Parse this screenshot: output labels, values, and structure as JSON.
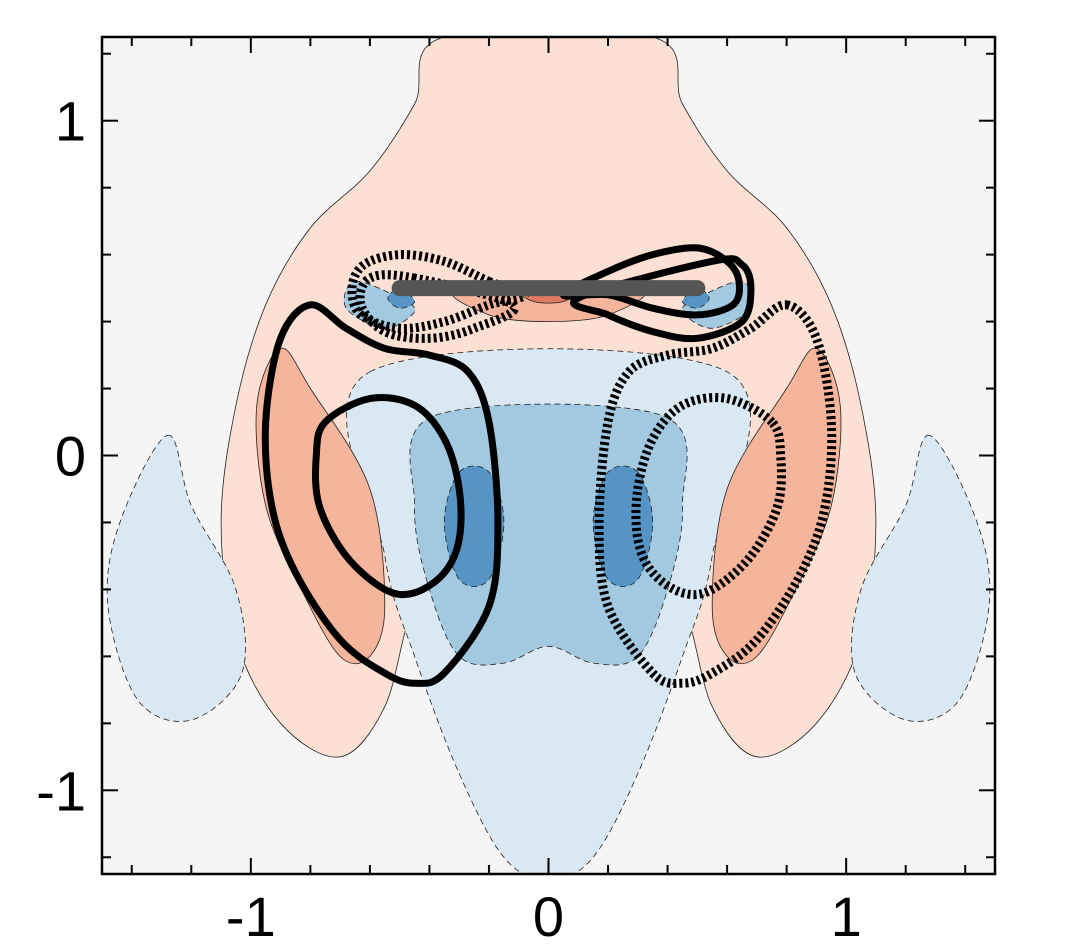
{
  "chart_data": {
    "type": "contour",
    "title": "",
    "xlabel": "",
    "ylabel": "",
    "xlim": [
      -1.5,
      1.5
    ],
    "ylim": [
      -1.25,
      1.25
    ],
    "x_ticks": [
      -1,
      0,
      1
    ],
    "x_tick_labels": [
      "-1",
      "0",
      "1"
    ],
    "y_ticks": [
      -1,
      0,
      1
    ],
    "y_tick_labels": [
      "-1",
      "0",
      "1"
    ],
    "grid": false,
    "legend": "none",
    "colors": {
      "background": "#f5f5f5",
      "positive_light": "#fbe0d3",
      "positive_mid": "#f4b59c",
      "positive_strong": "#e07a62",
      "negative_light": "#d9e8f2",
      "negative_mid": "#a3c9e0",
      "negative_strong": "#5594c4",
      "plate": "#555555",
      "isoline": "#000000"
    },
    "plate": {
      "x": [
        -0.5,
        0.5
      ],
      "y": 0.5
    },
    "filled_regions": [
      {
        "sign": "positive",
        "level": 1,
        "points": [
          [
            -0.35,
            1.25
          ],
          [
            0.35,
            1.25
          ],
          [
            0.45,
            1.05
          ],
          [
            0.6,
            0.85
          ],
          [
            0.8,
            0.68
          ],
          [
            0.95,
            0.45
          ],
          [
            1.05,
            0.15
          ],
          [
            1.1,
            -0.2
          ],
          [
            1.05,
            -0.55
          ],
          [
            0.9,
            -0.8
          ],
          [
            0.7,
            -0.9
          ],
          [
            0.55,
            -0.75
          ],
          [
            0.45,
            -0.45
          ],
          [
            0.3,
            -0.4
          ],
          [
            0.0,
            -0.35
          ],
          [
            -0.3,
            -0.4
          ],
          [
            -0.45,
            -0.45
          ],
          [
            -0.55,
            -0.75
          ],
          [
            -0.7,
            -0.9
          ],
          [
            -0.9,
            -0.8
          ],
          [
            -1.05,
            -0.55
          ],
          [
            -1.1,
            -0.2
          ],
          [
            -1.05,
            0.15
          ],
          [
            -0.95,
            0.45
          ],
          [
            -0.8,
            0.68
          ],
          [
            -0.6,
            0.85
          ],
          [
            -0.45,
            1.05
          ]
        ]
      },
      {
        "sign": "negative",
        "level": 1,
        "points": [
          [
            -0.6,
            0.25
          ],
          [
            0.6,
            0.25
          ],
          [
            0.55,
            -0.3
          ],
          [
            0.45,
            -0.6
          ],
          [
            0.3,
            -0.95
          ],
          [
            0.15,
            -1.2
          ],
          [
            0.0,
            -1.27
          ],
          [
            -0.15,
            -1.2
          ],
          [
            -0.3,
            -0.95
          ],
          [
            -0.45,
            -0.6
          ],
          [
            -0.55,
            -0.3
          ]
        ]
      },
      {
        "sign": "negative",
        "level": 1,
        "points": [
          [
            -1.28,
            0.06
          ],
          [
            -1.2,
            -0.15
          ],
          [
            -1.05,
            -0.4
          ],
          [
            -1.03,
            -0.65
          ],
          [
            -1.2,
            -0.79
          ],
          [
            -1.38,
            -0.73
          ],
          [
            -1.48,
            -0.45
          ],
          [
            -1.44,
            -0.2
          ]
        ]
      },
      {
        "sign": "negative",
        "level": 1,
        "points": [
          [
            1.28,
            0.06
          ],
          [
            1.2,
            -0.15
          ],
          [
            1.05,
            -0.4
          ],
          [
            1.03,
            -0.65
          ],
          [
            1.2,
            -0.79
          ],
          [
            1.38,
            -0.73
          ],
          [
            1.48,
            -0.45
          ],
          [
            1.44,
            -0.2
          ]
        ]
      },
      {
        "sign": "negative",
        "level": 2,
        "points": [
          [
            -0.38,
            0.12
          ],
          [
            0.38,
            0.12
          ],
          [
            0.45,
            -0.15
          ],
          [
            0.4,
            -0.4
          ],
          [
            0.3,
            -0.6
          ],
          [
            0.15,
            -0.62
          ],
          [
            0.0,
            -0.57
          ],
          [
            -0.15,
            -0.62
          ],
          [
            -0.3,
            -0.6
          ],
          [
            -0.4,
            -0.4
          ],
          [
            -0.45,
            -0.15
          ]
        ]
      },
      {
        "sign": "negative",
        "level": 3,
        "points": [
          [
            -0.3,
            -0.05
          ],
          [
            -0.2,
            -0.05
          ],
          [
            -0.15,
            -0.2
          ],
          [
            -0.2,
            -0.37
          ],
          [
            -0.3,
            -0.37
          ],
          [
            -0.35,
            -0.2
          ]
        ]
      },
      {
        "sign": "negative",
        "level": 3,
        "points": [
          [
            0.3,
            -0.05
          ],
          [
            0.2,
            -0.05
          ],
          [
            0.15,
            -0.2
          ],
          [
            0.2,
            -0.37
          ],
          [
            0.3,
            -0.37
          ],
          [
            0.35,
            -0.2
          ]
        ]
      },
      {
        "sign": "positive",
        "level": 2,
        "points": [
          [
            -0.9,
            0.32
          ],
          [
            -0.8,
            0.2
          ],
          [
            -0.6,
            -0.1
          ],
          [
            -0.55,
            -0.45
          ],
          [
            -0.6,
            -0.6
          ],
          [
            -0.7,
            -0.6
          ],
          [
            -0.83,
            -0.4
          ],
          [
            -0.95,
            -0.15
          ],
          [
            -0.98,
            0.15
          ]
        ]
      },
      {
        "sign": "positive",
        "level": 2,
        "points": [
          [
            0.9,
            0.32
          ],
          [
            0.8,
            0.2
          ],
          [
            0.6,
            -0.1
          ],
          [
            0.55,
            -0.45
          ],
          [
            0.6,
            -0.6
          ],
          [
            0.7,
            -0.6
          ],
          [
            0.83,
            -0.4
          ],
          [
            0.95,
            -0.15
          ],
          [
            0.98,
            0.15
          ]
        ]
      },
      {
        "sign": "negative",
        "level": 2,
        "points": [
          [
            -0.65,
            0.52
          ],
          [
            -0.5,
            0.47
          ],
          [
            -0.45,
            0.43
          ],
          [
            -0.55,
            0.38
          ],
          [
            -0.68,
            0.44
          ]
        ]
      },
      {
        "sign": "negative",
        "level": 2,
        "points": [
          [
            0.65,
            0.52
          ],
          [
            0.5,
            0.47
          ],
          [
            0.45,
            0.43
          ],
          [
            0.55,
            0.38
          ],
          [
            0.68,
            0.44
          ]
        ]
      },
      {
        "sign": "negative",
        "level": 3,
        "points": [
          [
            -0.5,
            0.5
          ],
          [
            -0.45,
            0.46
          ],
          [
            -0.5,
            0.44
          ],
          [
            -0.54,
            0.47
          ]
        ]
      },
      {
        "sign": "negative",
        "level": 3,
        "points": [
          [
            0.5,
            0.5
          ],
          [
            0.45,
            0.46
          ],
          [
            0.5,
            0.44
          ],
          [
            0.54,
            0.47
          ]
        ]
      },
      {
        "sign": "positive",
        "level": 2,
        "points": [
          [
            -0.3,
            0.5
          ],
          [
            0.3,
            0.5
          ],
          [
            0.2,
            0.42
          ],
          [
            0.0,
            0.4
          ],
          [
            -0.2,
            0.42
          ]
        ]
      },
      {
        "sign": "positive",
        "level": 3,
        "points": [
          [
            -0.1,
            0.5
          ],
          [
            0.1,
            0.5
          ],
          [
            0.05,
            0.46
          ],
          [
            -0.05,
            0.46
          ]
        ]
      }
    ],
    "isolines": [
      {
        "style": "solid",
        "points": [
          [
            -0.8,
            0.45
          ],
          [
            -0.9,
            0.35
          ],
          [
            -0.95,
            0.1
          ],
          [
            -0.93,
            -0.15
          ],
          [
            -0.85,
            -0.35
          ],
          [
            -0.7,
            -0.55
          ],
          [
            -0.55,
            -0.65
          ],
          [
            -0.45,
            -0.68
          ],
          [
            -0.35,
            -0.65
          ],
          [
            -0.2,
            -0.45
          ],
          [
            -0.17,
            -0.2
          ],
          [
            -0.2,
            0.1
          ],
          [
            -0.27,
            0.25
          ],
          [
            -0.4,
            0.3
          ],
          [
            -0.55,
            0.32
          ],
          [
            -0.68,
            0.38
          ]
        ]
      },
      {
        "style": "solid",
        "points": [
          [
            -0.75,
            0.1
          ],
          [
            -0.6,
            0.17
          ],
          [
            -0.45,
            0.15
          ],
          [
            -0.35,
            0.05
          ],
          [
            -0.3,
            -0.1
          ],
          [
            -0.3,
            -0.25
          ],
          [
            -0.35,
            -0.35
          ],
          [
            -0.45,
            -0.41
          ],
          [
            -0.55,
            -0.4
          ],
          [
            -0.68,
            -0.3
          ],
          [
            -0.77,
            -0.15
          ],
          [
            -0.78,
            0.0
          ]
        ]
      },
      {
        "style": "dashed",
        "points": [
          [
            0.8,
            0.45
          ],
          [
            0.9,
            0.35
          ],
          [
            0.95,
            0.1
          ],
          [
            0.93,
            -0.15
          ],
          [
            0.85,
            -0.35
          ],
          [
            0.7,
            -0.55
          ],
          [
            0.55,
            -0.65
          ],
          [
            0.45,
            -0.68
          ],
          [
            0.35,
            -0.65
          ],
          [
            0.2,
            -0.45
          ],
          [
            0.17,
            -0.2
          ],
          [
            0.2,
            0.1
          ],
          [
            0.27,
            0.25
          ],
          [
            0.4,
            0.3
          ],
          [
            0.55,
            0.32
          ],
          [
            0.68,
            0.38
          ]
        ]
      },
      {
        "style": "dashed",
        "points": [
          [
            0.75,
            0.1
          ],
          [
            0.6,
            0.17
          ],
          [
            0.45,
            0.15
          ],
          [
            0.35,
            0.05
          ],
          [
            0.3,
            -0.1
          ],
          [
            0.3,
            -0.25
          ],
          [
            0.35,
            -0.35
          ],
          [
            0.45,
            -0.41
          ],
          [
            0.55,
            -0.4
          ],
          [
            0.68,
            -0.3
          ],
          [
            0.77,
            -0.15
          ],
          [
            0.78,
            0.0
          ]
        ]
      },
      {
        "style": "solid",
        "points": [
          [
            0.2,
            0.55
          ],
          [
            0.35,
            0.6
          ],
          [
            0.5,
            0.62
          ],
          [
            0.6,
            0.58
          ],
          [
            0.64,
            0.52
          ],
          [
            0.62,
            0.45
          ],
          [
            0.5,
            0.42
          ],
          [
            0.35,
            0.44
          ],
          [
            0.2,
            0.48
          ],
          [
            0.05,
            0.48
          ]
        ]
      },
      {
        "style": "solid",
        "points": [
          [
            0.55,
            0.58
          ],
          [
            0.65,
            0.57
          ],
          [
            0.68,
            0.5
          ],
          [
            0.65,
            0.4
          ],
          [
            0.5,
            0.35
          ],
          [
            0.35,
            0.37
          ],
          [
            0.2,
            0.42
          ],
          [
            0.1,
            0.47
          ]
        ]
      },
      {
        "style": "dashed",
        "points": [
          [
            -0.2,
            0.52
          ],
          [
            -0.35,
            0.58
          ],
          [
            -0.5,
            0.6
          ],
          [
            -0.62,
            0.57
          ],
          [
            -0.66,
            0.5
          ],
          [
            -0.63,
            0.42
          ],
          [
            -0.5,
            0.38
          ],
          [
            -0.35,
            0.4
          ],
          [
            -0.2,
            0.45
          ],
          [
            -0.08,
            0.48
          ]
        ]
      },
      {
        "style": "dashed",
        "points": [
          [
            -0.45,
            0.53
          ],
          [
            -0.6,
            0.53
          ],
          [
            -0.63,
            0.45
          ],
          [
            -0.55,
            0.37
          ],
          [
            -0.4,
            0.35
          ],
          [
            -0.25,
            0.38
          ],
          [
            -0.12,
            0.45
          ]
        ]
      }
    ]
  }
}
